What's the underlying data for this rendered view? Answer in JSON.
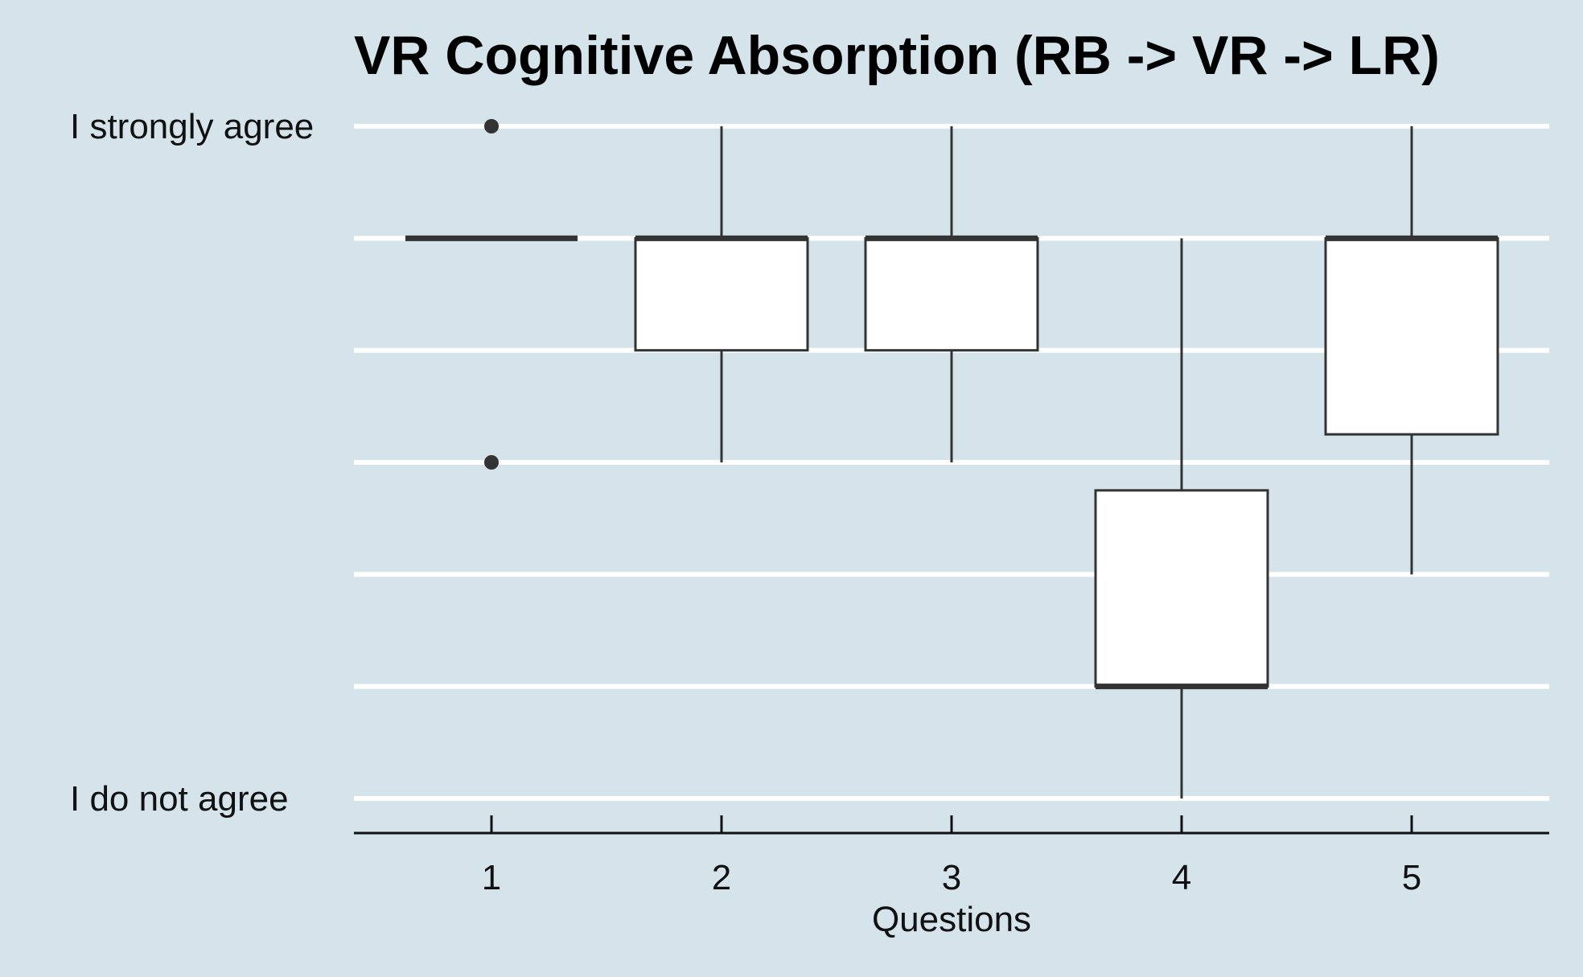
{
  "chart_data": {
    "type": "box",
    "title": "VR Cognitive Absorption (RB -> VR -> LR)",
    "xlabel": "Questions",
    "ylabel": "",
    "categories": [
      "1",
      "2",
      "3",
      "4",
      "5"
    ],
    "y_scale": {
      "min": 1,
      "max": 7,
      "tick_values": [
        1,
        2,
        3,
        4,
        5,
        6,
        7
      ],
      "tick_labels": {
        "1": "I do not agree",
        "7": "I strongly agree"
      }
    },
    "grid": "horizontal",
    "boxes": [
      {
        "category": "1",
        "whisker_low": 6,
        "q1": 6,
        "median": 6,
        "q3": 6,
        "whisker_high": 6,
        "outliers": [
          7,
          4
        ]
      },
      {
        "category": "2",
        "whisker_low": 4,
        "q1": 5,
        "median": 6,
        "q3": 6,
        "whisker_high": 7,
        "outliers": []
      },
      {
        "category": "3",
        "whisker_low": 4,
        "q1": 5,
        "median": 6,
        "q3": 6,
        "whisker_high": 7,
        "outliers": []
      },
      {
        "category": "4",
        "whisker_low": 1,
        "q1": 2,
        "median": 2,
        "q3": 3.75,
        "whisker_high": 6,
        "outliers": []
      },
      {
        "category": "5",
        "whisker_low": 3,
        "q1": 4.25,
        "median": 6,
        "q3": 6,
        "whisker_high": 7,
        "outliers": []
      }
    ],
    "colors": {
      "background": "#d5e4eb",
      "grid": "#ffffff",
      "box_fill": "#ffffff",
      "box_stroke": "#333333"
    }
  }
}
